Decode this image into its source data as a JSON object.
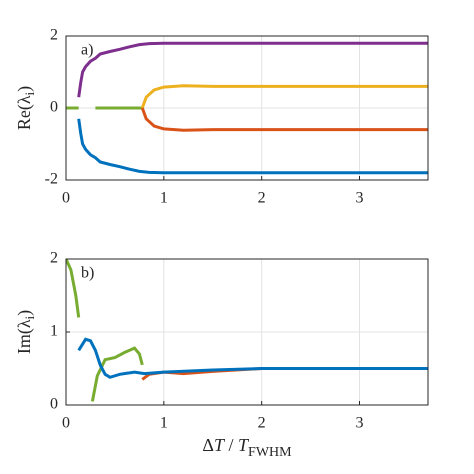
{
  "chart_data": [
    {
      "type": "line",
      "annotation": "a)",
      "ylabel": [
        "Re(λ",
        "i",
        ")"
      ],
      "xlim": [
        0,
        3.7
      ],
      "xticks": [
        0,
        1,
        2,
        3
      ],
      "ylim": [
        -2,
        2
      ],
      "yticks": [
        -2,
        0,
        2
      ],
      "grid": true,
      "series": [
        {
          "color": "#7e2f8e",
          "x": [
            0.13,
            0.15,
            0.17,
            0.2,
            0.25,
            0.3,
            0.35,
            0.45,
            0.55,
            0.65,
            0.75,
            0.85,
            1.0,
            1.5,
            3.7
          ],
          "values": [
            0.3,
            0.7,
            1.0,
            1.15,
            1.3,
            1.38,
            1.5,
            1.57,
            1.63,
            1.7,
            1.76,
            1.79,
            1.8,
            1.8,
            1.8
          ]
        },
        {
          "color": "#0072bd",
          "x": [
            0.13,
            0.15,
            0.17,
            0.2,
            0.25,
            0.3,
            0.35,
            0.45,
            0.55,
            0.65,
            0.75,
            0.85,
            1.0,
            1.5,
            3.7
          ],
          "values": [
            -0.3,
            -0.7,
            -1.0,
            -1.15,
            -1.3,
            -1.38,
            -1.5,
            -1.57,
            -1.63,
            -1.7,
            -1.76,
            -1.79,
            -1.8,
            -1.8,
            -1.8
          ]
        },
        {
          "color": "#77ac30",
          "x": [
            0,
            0.13,
            0.2,
            0.3,
            0.78
          ],
          "values": [
            0,
            0,
            null,
            0,
            0
          ]
        },
        {
          "color": "#edb120",
          "x": [
            0.78,
            0.82,
            0.9,
            1.0,
            1.2,
            1.5,
            2.0,
            3.7
          ],
          "values": [
            0,
            0.3,
            0.5,
            0.58,
            0.62,
            0.6,
            0.6,
            0.6
          ]
        },
        {
          "color": "#d95319",
          "x": [
            0.78,
            0.82,
            0.9,
            1.0,
            1.2,
            1.5,
            2.0,
            3.7
          ],
          "values": [
            0,
            -0.3,
            -0.5,
            -0.58,
            -0.62,
            -0.6,
            -0.6,
            -0.6
          ]
        }
      ]
    },
    {
      "type": "line",
      "annotation": "b)",
      "ylabel": [
        "Im(λ",
        "i",
        ")"
      ],
      "xlabel": [
        "Δ",
        "T",
        " / ",
        "T",
        "FWHM"
      ],
      "xlim": [
        0,
        3.7
      ],
      "xticks": [
        0,
        1,
        2,
        3
      ],
      "ylim": [
        0,
        2
      ],
      "yticks": [
        0,
        1,
        2
      ],
      "grid": true,
      "series": [
        {
          "color": "#77ac30",
          "x": [
            0,
            0.05,
            0.1,
            0.13,
            0.2,
            0.27,
            0.32,
            0.4,
            0.5,
            0.6,
            0.7,
            0.75,
            0.78
          ],
          "values": [
            2.0,
            1.85,
            1.5,
            1.2,
            null,
            0.05,
            0.4,
            0.62,
            0.65,
            0.72,
            0.78,
            0.7,
            0.55
          ]
        },
        {
          "color": "#d95319",
          "x": [
            0.78,
            0.85,
            1.0,
            1.2,
            1.5,
            2.0,
            3.7
          ],
          "values": [
            0.35,
            0.42,
            0.45,
            0.43,
            0.46,
            0.5,
            0.5
          ]
        },
        {
          "color": "#0072bd",
          "x": [
            0.13,
            0.2,
            0.25,
            0.3,
            0.35,
            0.4,
            0.45,
            0.55,
            0.7,
            0.8,
            1.0,
            1.5,
            2.0,
            3.7
          ],
          "values": [
            0.75,
            0.9,
            0.88,
            0.75,
            0.55,
            0.42,
            0.38,
            0.42,
            0.45,
            0.43,
            0.45,
            0.48,
            0.5,
            0.5
          ]
        }
      ]
    }
  ]
}
